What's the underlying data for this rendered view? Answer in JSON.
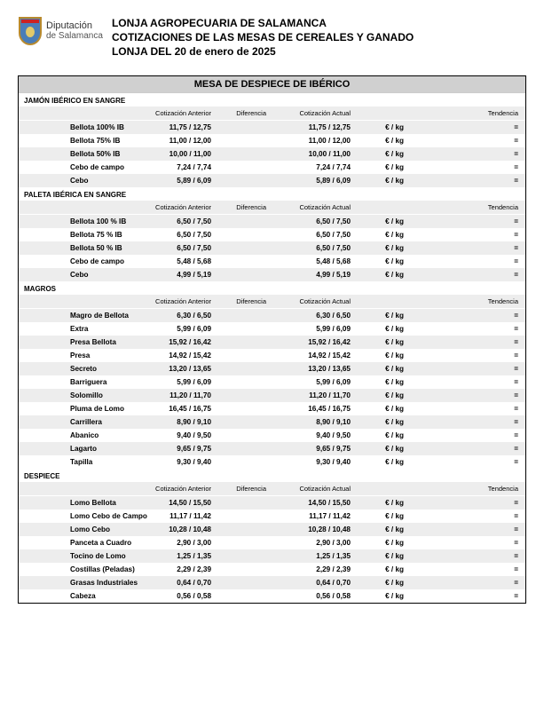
{
  "org_name": "Diputación",
  "org_sub": "de Salamanca",
  "header_lines": [
    "LONJA AGROPECUARIA DE SALAMANCA",
    "COTIZACIONES DE LAS MESAS DE CEREALES Y GANADO",
    "LONJA DEL 20 de enero de 2025"
  ],
  "table_title": "MESA DE DESPIECE DE IBÉRICO",
  "columns": {
    "prev": "Cotización Anterior",
    "diff": "Diferencia",
    "curr": "Cotización Actual",
    "unit": "",
    "trend": "Tendencia"
  },
  "unit_label": "€ / kg",
  "trend_symbol": "=",
  "sections": [
    {
      "name": "JAMÓN IBÉRICO EN SANGRE",
      "rows": [
        {
          "label": "Bellota 100% IB",
          "prev": "11,75 / 12,75",
          "diff": "",
          "curr": "11,75 / 12,75"
        },
        {
          "label": "Bellota 75% IB",
          "prev": "11,00 / 12,00",
          "diff": "",
          "curr": "11,00 / 12,00"
        },
        {
          "label": "Bellota 50% IB",
          "prev": "10,00 / 11,00",
          "diff": "",
          "curr": "10,00 / 11,00"
        },
        {
          "label": "Cebo de campo",
          "prev": "7,24 / 7,74",
          "diff": "",
          "curr": "7,24 / 7,74"
        },
        {
          "label": "Cebo",
          "prev": "5,89 / 6,09",
          "diff": "",
          "curr": "5,89 / 6,09"
        }
      ]
    },
    {
      "name": "PALETA IBÉRICA EN SANGRE",
      "rows": [
        {
          "label": "Bellota 100 % IB",
          "prev": "6,50 / 7,50",
          "diff": "",
          "curr": "6,50 / 7,50"
        },
        {
          "label": "Bellota 75 % IB",
          "prev": "6,50 / 7,50",
          "diff": "",
          "curr": "6,50 / 7,50"
        },
        {
          "label": "Bellota 50 % IB",
          "prev": "6,50 / 7,50",
          "diff": "",
          "curr": "6,50 / 7,50"
        },
        {
          "label": "Cebo de campo",
          "prev": "5,48 / 5,68",
          "diff": "",
          "curr": "5,48 / 5,68"
        },
        {
          "label": "Cebo",
          "prev": "4,99 / 5,19",
          "diff": "",
          "curr": "4,99 / 5,19"
        }
      ]
    },
    {
      "name": "MAGROS",
      "rows": [
        {
          "label": "Magro de Bellota",
          "prev": "6,30 / 6,50",
          "diff": "",
          "curr": "6,30 / 6,50"
        },
        {
          "label": "Extra",
          "prev": "5,99 / 6,09",
          "diff": "",
          "curr": "5,99 / 6,09"
        },
        {
          "label": "Presa Bellota",
          "prev": "15,92 / 16,42",
          "diff": "",
          "curr": "15,92 / 16,42"
        },
        {
          "label": "Presa",
          "prev": "14,92 / 15,42",
          "diff": "",
          "curr": "14,92 / 15,42"
        },
        {
          "label": "Secreto",
          "prev": "13,20 / 13,65",
          "diff": "",
          "curr": "13,20 / 13,65"
        },
        {
          "label": "Barriguera",
          "prev": "5,99 / 6,09",
          "diff": "",
          "curr": "5,99 / 6,09"
        },
        {
          "label": "Solomillo",
          "prev": "11,20 / 11,70",
          "diff": "",
          "curr": "11,20 / 11,70"
        },
        {
          "label": "Pluma de Lomo",
          "prev": "16,45 / 16,75",
          "diff": "",
          "curr": "16,45 / 16,75"
        },
        {
          "label": "Carrillera",
          "prev": "8,90 / 9,10",
          "diff": "",
          "curr": "8,90 / 9,10"
        },
        {
          "label": "Abanico",
          "prev": "9,40 / 9,50",
          "diff": "",
          "curr": "9,40 / 9,50"
        },
        {
          "label": "Lagarto",
          "prev": "9,65 / 9,75",
          "diff": "",
          "curr": "9,65 / 9,75"
        },
        {
          "label": "Tapilla",
          "prev": "9,30 / 9,40",
          "diff": "",
          "curr": "9,30 / 9,40"
        }
      ]
    },
    {
      "name": "DESPIECE",
      "rows": [
        {
          "label": "Lomo Bellota",
          "prev": "14,50 / 15,50",
          "diff": "",
          "curr": "14,50 / 15,50"
        },
        {
          "label": "Lomo Cebo de Campo",
          "prev": "11,17 / 11,42",
          "diff": "",
          "curr": "11,17 / 11,42"
        },
        {
          "label": "Lomo Cebo",
          "prev": "10,28 / 10,48",
          "diff": "",
          "curr": "10,28 / 10,48"
        },
        {
          "label": "Panceta a Cuadro",
          "prev": "2,90 / 3,00",
          "diff": "",
          "curr": "2,90 / 3,00"
        },
        {
          "label": "Tocino de Lomo",
          "prev": "1,25 / 1,35",
          "diff": "",
          "curr": "1,25 / 1,35"
        },
        {
          "label": "Costillas (Peladas)",
          "prev": "2,29 / 2,39",
          "diff": "",
          "curr": "2,29 / 2,39"
        },
        {
          "label": "Grasas Industriales",
          "prev": "0,64 / 0,70",
          "diff": "",
          "curr": "0,64 / 0,70"
        },
        {
          "label": "Cabeza",
          "prev": "0,56 / 0,58",
          "diff": "",
          "curr": "0,56 / 0,58"
        }
      ]
    }
  ]
}
